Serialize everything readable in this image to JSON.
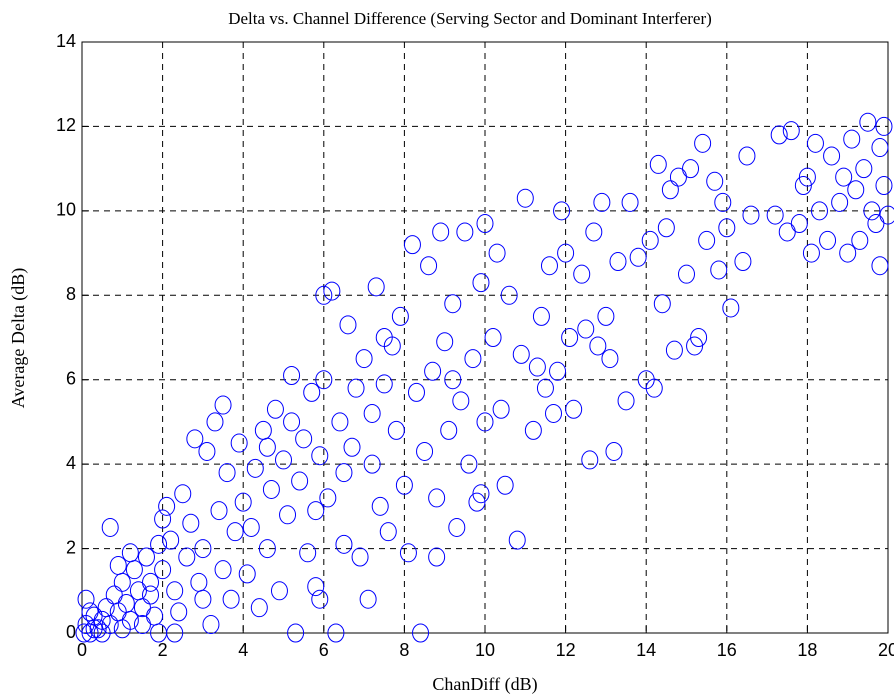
{
  "chart_data": {
    "type": "scatter",
    "title": "Delta vs. Channel Difference (Serving Sector and Dominant Interferer)",
    "x_label": "ChanDiff (dB)",
    "y_label": "Average Delta (dB)",
    "xlim": [
      0,
      20
    ],
    "ylim": [
      0,
      14
    ],
    "xticks": [
      0,
      2,
      4,
      6,
      8,
      10,
      12,
      14,
      16,
      18,
      20
    ],
    "yticks": [
      0,
      2,
      4,
      6,
      8,
      10,
      12,
      14
    ],
    "grid": true,
    "x": [
      0.1,
      0.2,
      0.3,
      0.1,
      0.4,
      0.5,
      0.6,
      0.7,
      0.8,
      0.9,
      1.0,
      1.1,
      1.2,
      1.3,
      1.4,
      1.5,
      1.6,
      1.7,
      1.8,
      1.9,
      0.7,
      0.05,
      0.3,
      0.5,
      1.0,
      1.5,
      1.9,
      0.2,
      0.9,
      1.2,
      1.7,
      2.0,
      2.1,
      2.2,
      2.3,
      2.4,
      2.5,
      2.6,
      2.7,
      2.8,
      2.9,
      3.0,
      3.1,
      3.2,
      3.3,
      3.4,
      3.5,
      3.6,
      3.7,
      3.8,
      3.9,
      4.0,
      2.3,
      3.0,
      3.5,
      2.0,
      4.1,
      4.2,
      4.3,
      4.4,
      4.5,
      4.6,
      4.7,
      4.8,
      4.9,
      5.0,
      5.1,
      5.2,
      5.3,
      5.4,
      5.5,
      5.6,
      5.7,
      5.8,
      5.9,
      6.0,
      5.2,
      4.6,
      5.8,
      5.9,
      6.1,
      6.2,
      6.3,
      6.4,
      6.5,
      6.6,
      6.7,
      6.8,
      6.9,
      7.0,
      7.1,
      7.2,
      7.3,
      7.4,
      7.5,
      7.6,
      7.7,
      7.8,
      7.9,
      8.0,
      6.5,
      7.2,
      6.0,
      7.5,
      8.1,
      8.2,
      8.3,
      8.4,
      8.5,
      8.6,
      8.7,
      8.8,
      8.9,
      9.0,
      9.1,
      9.2,
      9.3,
      9.4,
      9.5,
      9.6,
      9.7,
      9.8,
      9.9,
      10.0,
      8.8,
      9.2,
      10.0,
      9.9,
      10.2,
      10.4,
      10.6,
      10.8,
      10.9,
      11.0,
      11.2,
      11.4,
      11.5,
      11.6,
      11.8,
      11.9,
      12.0,
      12.1,
      11.3,
      10.5,
      11.7,
      10.3,
      12.2,
      12.4,
      12.6,
      12.7,
      12.8,
      12.9,
      13.0,
      13.2,
      13.3,
      13.5,
      13.6,
      13.8,
      14.0,
      14.1,
      14.2,
      13.1,
      12.5,
      14.3,
      14.4,
      14.5,
      14.7,
      14.8,
      15.0,
      15.1,
      15.3,
      15.4,
      15.5,
      15.7,
      15.8,
      16.0,
      16.1,
      15.2,
      14.6,
      15.9,
      16.4,
      16.5,
      16.6,
      17.2,
      17.3,
      17.5,
      17.6,
      17.8,
      18.0,
      18.1,
      18.2,
      18.3,
      18.5,
      18.6,
      18.8,
      19.0,
      19.1,
      19.2,
      19.3,
      19.4,
      19.5,
      19.6,
      19.7,
      19.8,
      19.9,
      20.0,
      19.8,
      19.9,
      18.9,
      17.9
    ],
    "series": [
      {
        "color": "#0000ff",
        "values": [
          0.2,
          0.0,
          0.4,
          0.8,
          0.1,
          0.3,
          0.6,
          0.2,
          0.9,
          0.5,
          1.2,
          0.7,
          0.3,
          1.5,
          1.0,
          0.6,
          1.8,
          1.2,
          0.4,
          2.1,
          2.5,
          0.0,
          0.1,
          0.0,
          0.1,
          0.2,
          0.0,
          0.5,
          1.6,
          1.9,
          0.9,
          1.5,
          3.0,
          2.2,
          1.0,
          0.5,
          3.3,
          1.8,
          2.6,
          4.6,
          1.2,
          2.0,
          4.3,
          0.2,
          5.0,
          2.9,
          1.5,
          3.8,
          0.8,
          2.4,
          4.5,
          3.1,
          0.0,
          0.8,
          5.4,
          2.7,
          1.4,
          2.5,
          3.9,
          0.6,
          4.8,
          2.0,
          3.4,
          5.3,
          1.0,
          4.1,
          2.8,
          6.1,
          0.0,
          3.6,
          4.6,
          1.9,
          5.7,
          2.9,
          4.2,
          8.0,
          5.0,
          4.4,
          1.1,
          0.8,
          3.2,
          8.1,
          0.0,
          5.0,
          2.1,
          7.3,
          4.4,
          5.8,
          1.8,
          6.5,
          0.8,
          4.0,
          8.2,
          3.0,
          5.9,
          2.4,
          6.8,
          4.8,
          7.5,
          3.5,
          3.8,
          5.2,
          6.0,
          7.0,
          1.9,
          9.2,
          5.7,
          0.0,
          4.3,
          8.7,
          6.2,
          3.2,
          9.5,
          6.9,
          4.8,
          7.8,
          2.5,
          5.5,
          9.5,
          4.0,
          6.5,
          3.1,
          8.3,
          5.0,
          1.8,
          6.0,
          9.7,
          3.3,
          7.0,
          5.3,
          8.0,
          2.2,
          6.6,
          10.3,
          4.8,
          7.5,
          5.8,
          8.7,
          6.2,
          10.0,
          9.0,
          7.0,
          6.3,
          3.5,
          5.2,
          9.0,
          5.3,
          8.5,
          4.1,
          9.5,
          6.8,
          10.2,
          7.5,
          4.3,
          8.8,
          5.5,
          10.2,
          8.9,
          6.0,
          9.3,
          5.8,
          6.5,
          7.2,
          11.1,
          7.8,
          9.6,
          6.7,
          10.8,
          8.5,
          11.0,
          7.0,
          11.6,
          9.3,
          10.7,
          8.6,
          9.6,
          7.7,
          6.8,
          10.5,
          10.2,
          8.8,
          11.3,
          9.9,
          9.9,
          11.8,
          9.5,
          11.9,
          9.7,
          10.8,
          9.0,
          11.6,
          10.0,
          9.3,
          11.3,
          10.2,
          9.0,
          11.7,
          10.5,
          9.3,
          11.0,
          12.1,
          10.0,
          9.7,
          11.5,
          10.6,
          9.9,
          8.7,
          12.0,
          10.8,
          10.6
        ]
      }
    ]
  }
}
